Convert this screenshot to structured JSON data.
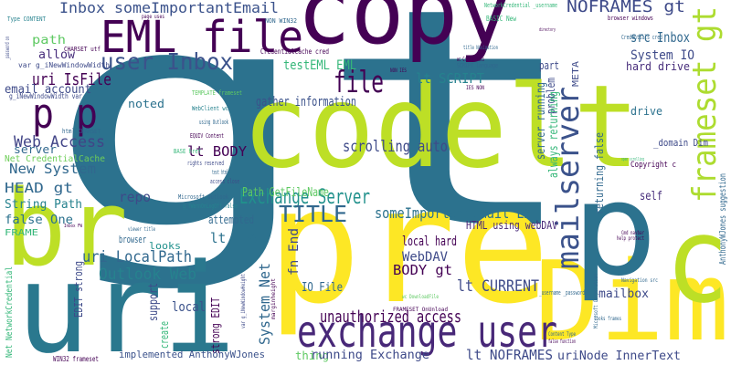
{
  "words": [
    {
      "text": "gt",
      "color": "#2c728e"
    },
    {
      "text": "copy",
      "color": "#440154"
    },
    {
      "text": "codelt",
      "color": "#bddf26"
    },
    {
      "text": "pre",
      "color": "#fde725"
    },
    {
      "text": "uri",
      "color": "#2a788e"
    },
    {
      "text": "br",
      "color": "#bddf26"
    },
    {
      "text": "Dim",
      "color": "#fde725"
    },
    {
      "text": "c",
      "color": "#bddf26"
    },
    {
      "text": "p",
      "color": "#2c728e"
    },
    {
      "text": "EML file",
      "color": "#440154"
    },
    {
      "text": "frameset gt",
      "color": "#addc30"
    },
    {
      "text": "mailserver",
      "color": "#3b528b"
    },
    {
      "text": "exchange user",
      "color": "#482878"
    },
    {
      "text": "p p",
      "color": "#440154"
    },
    {
      "text": "Inbox someImportantEmail",
      "color": "#3b528b"
    },
    {
      "text": "path",
      "color": "#5ec962"
    },
    {
      "text": "allow",
      "color": "#472d7b"
    },
    {
      "text": "uri IsFile",
      "color": "#440154"
    },
    {
      "text": "email account",
      "color": "#3e4a89"
    },
    {
      "text": "user Inbox",
      "color": "#3b528b"
    },
    {
      "text": "noted",
      "color": "#2c728e"
    },
    {
      "text": "Web Access",
      "color": "#414487"
    },
    {
      "text": "server",
      "color": "#31688e"
    },
    {
      "text": "New System",
      "color": "#31688e"
    },
    {
      "text": "HEAD gt",
      "color": "#31688e"
    },
    {
      "text": "String Path",
      "color": "#26828e"
    },
    {
      "text": "false One",
      "color": "#2c728e"
    },
    {
      "text": "FRAME",
      "color": "#35b779"
    },
    {
      "text": "Net CredentialCache",
      "color": "#6ece58"
    },
    {
      "text": "repo",
      "color": "#3e4a89"
    },
    {
      "text": "browser",
      "color": "#31688e"
    },
    {
      "text": "uri LocalPath",
      "color": "#31688e"
    },
    {
      "text": "Outlook Web",
      "color": "#26828e"
    },
    {
      "text": "lt HEAD",
      "color": "#2c728e"
    },
    {
      "text": "attempted",
      "color": "#31688e"
    },
    {
      "text": "looks",
      "color": "#21918c"
    },
    {
      "text": "lt BODY",
      "color": "#440154"
    },
    {
      "text": "gather information",
      "color": "#3b528b"
    },
    {
      "text": "testEML EML",
      "color": "#35b779"
    },
    {
      "text": "file",
      "color": "#440154"
    },
    {
      "text": "lt SCRIPT",
      "color": "#26828e"
    },
    {
      "text": "src Inbox",
      "color": "#31688e"
    },
    {
      "text": "NOFRAMES gt",
      "color": "#3e4a89"
    },
    {
      "text": "System IO",
      "color": "#3e4a89"
    },
    {
      "text": "hard drive",
      "color": "#472d7b"
    },
    {
      "text": "part",
      "color": "#3e4a89"
    },
    {
      "text": "problem",
      "color": "#3e4a89"
    },
    {
      "text": "server running",
      "color": "#31688e"
    },
    {
      "text": "always returning",
      "color": "#35b779"
    },
    {
      "text": "returning false",
      "color": "#31688e"
    },
    {
      "text": "drive",
      "color": "#2c728e"
    },
    {
      "text": "self",
      "color": "#472d7b"
    },
    {
      "text": "_domain Dim",
      "color": "#3e4a89"
    },
    {
      "text": "Copyright c",
      "color": "#440154"
    },
    {
      "text": "AnthonyWJones suggestion",
      "color": "#31688e"
    },
    {
      "text": "scrolling auto",
      "color": "#3e4a89"
    },
    {
      "text": "Exchange Server",
      "color": "#21918c"
    },
    {
      "text": "TITLE",
      "color": "#31688e"
    },
    {
      "text": "someImportantEmail EML",
      "color": "#2c728e"
    },
    {
      "text": "Path GetFileName",
      "color": "#5ec962"
    },
    {
      "text": "local hard",
      "color": "#440154"
    },
    {
      "text": "HTML using webDAV",
      "color": "#482878"
    },
    {
      "text": "WebDAV",
      "color": "#3e4a89"
    },
    {
      "text": "BODY gt",
      "color": "#440154"
    },
    {
      "text": "IO File",
      "color": "#31688e"
    },
    {
      "text": "fn End",
      "color": "#3e4a89"
    },
    {
      "text": "lt CURRENT",
      "color": "#3e4a89"
    },
    {
      "text": "unauthorized access",
      "color": "#440154"
    },
    {
      "text": "mailbox",
      "color": "#3e4a89"
    },
    {
      "text": "local",
      "color": "#3b528b"
    },
    {
      "text": "create",
      "color": "#35b779"
    },
    {
      "text": "support",
      "color": "#3e4a89"
    },
    {
      "text": "strong EDIT",
      "color": "#440154"
    },
    {
      "text": "System Net",
      "color": "#31688e"
    },
    {
      "text": "thing",
      "color": "#5ec962"
    },
    {
      "text": "running Exchange",
      "color": "#3e4a89"
    },
    {
      "text": "lt NOFRAMES",
      "color": "#3e4a89"
    },
    {
      "text": "uriNode InnerText",
      "color": "#3e4a89"
    },
    {
      "text": "implemented AnthonyWJones",
      "color": "#3b528b"
    },
    {
      "text": "WIN32 frameset",
      "color": "#440154"
    },
    {
      "text": "EDIT strong",
      "color": "#3e4a89"
    },
    {
      "text": "Net NetworkCredential",
      "color": "#35b779"
    },
    {
      "text": "CredentialCache cred",
      "color": "#440154"
    },
    {
      "text": "NON WIN32",
      "color": "#31688e"
    },
    {
      "text": "NetworkCredential _username",
      "color": "#35b779"
    },
    {
      "text": "BASIC New",
      "color": "#35b779"
    },
    {
      "text": "browser windows",
      "color": "#440154"
    },
    {
      "text": "Credentials cred",
      "color": "#31688e"
    },
    {
      "text": "wc Credentials",
      "color": "#440154"
    },
    {
      "text": "SCRIPT language",
      "color": "#31688e"
    },
    {
      "text": "IES NON",
      "color": "#440154"
    },
    {
      "text": "NON IES",
      "color": "#440154"
    },
    {
      "text": "TEMPLATE frameset",
      "color": "#5ec962"
    },
    {
      "text": "WebClient wc",
      "color": "#26828e"
    },
    {
      "text": "using Outlook",
      "color": "#31688e"
    },
    {
      "text": "EQUIV Content",
      "color": "#440154"
    },
    {
      "text": "rights reserved",
      "color": "#3e4a89"
    },
    {
      "text": "text html",
      "color": "#31688e"
    },
    {
      "text": "access close",
      "color": "#3e4a89"
    },
    {
      "text": "Microsoft Outlook",
      "color": "#31688e"
    },
    {
      "text": "g_fWarnOnLogOff false",
      "color": "#26828e"
    },
    {
      "text": "BASE href",
      "color": "#35b779"
    },
    {
      "text": "html CHARSET",
      "color": "#31688e"
    },
    {
      "text": "CHARSET utf",
      "color": "#440154"
    },
    {
      "text": "var g_iNewWindowWidth",
      "color": "#3e4a89"
    },
    {
      "text": "g_iNewWindowWidth var",
      "color": "#3e4a89"
    },
    {
      "text": "Type CONTENT",
      "color": "#26828e"
    },
    {
      "text": "page uses",
      "color": "#440154"
    },
    {
      "text": "META",
      "color": "#3e4a89"
    },
    {
      "text": "Content Type",
      "color": "#31688e"
    },
    {
      "text": "false function",
      "color": "#440154"
    },
    {
      "text": "looks frames",
      "color": "#31688e"
    },
    {
      "text": "Navigation src",
      "color": "#31688e"
    },
    {
      "text": "help protect",
      "color": "#440154"
    },
    {
      "text": "Cmd navbar",
      "color": "#440154"
    },
    {
      "text": "Microsoft Corporation",
      "color": "#31688e"
    },
    {
      "text": "FRAMESET OnUnload",
      "color": "#440154"
    },
    {
      "text": "wc DownloadFile",
      "color": "#5ec962"
    },
    {
      "text": "_username _password",
      "color": "#31688e"
    },
    {
      "text": "var g_iNewWindowHeight",
      "color": "#3e4a89"
    },
    {
      "text": "marginheight",
      "color": "#440154"
    },
    {
      "text": "Inbox FW",
      "color": "#440154"
    },
    {
      "text": "viewer title",
      "color": "#31688e"
    },
    {
      "text": "_password on",
      "color": "#3e4a89"
    },
    {
      "text": "title Navigation",
      "color": "#31688e"
    },
    {
      "text": "open scrolling",
      "color": "#35b779"
    },
    {
      "text": "directory",
      "color": "#440154"
    }
  ]
}
